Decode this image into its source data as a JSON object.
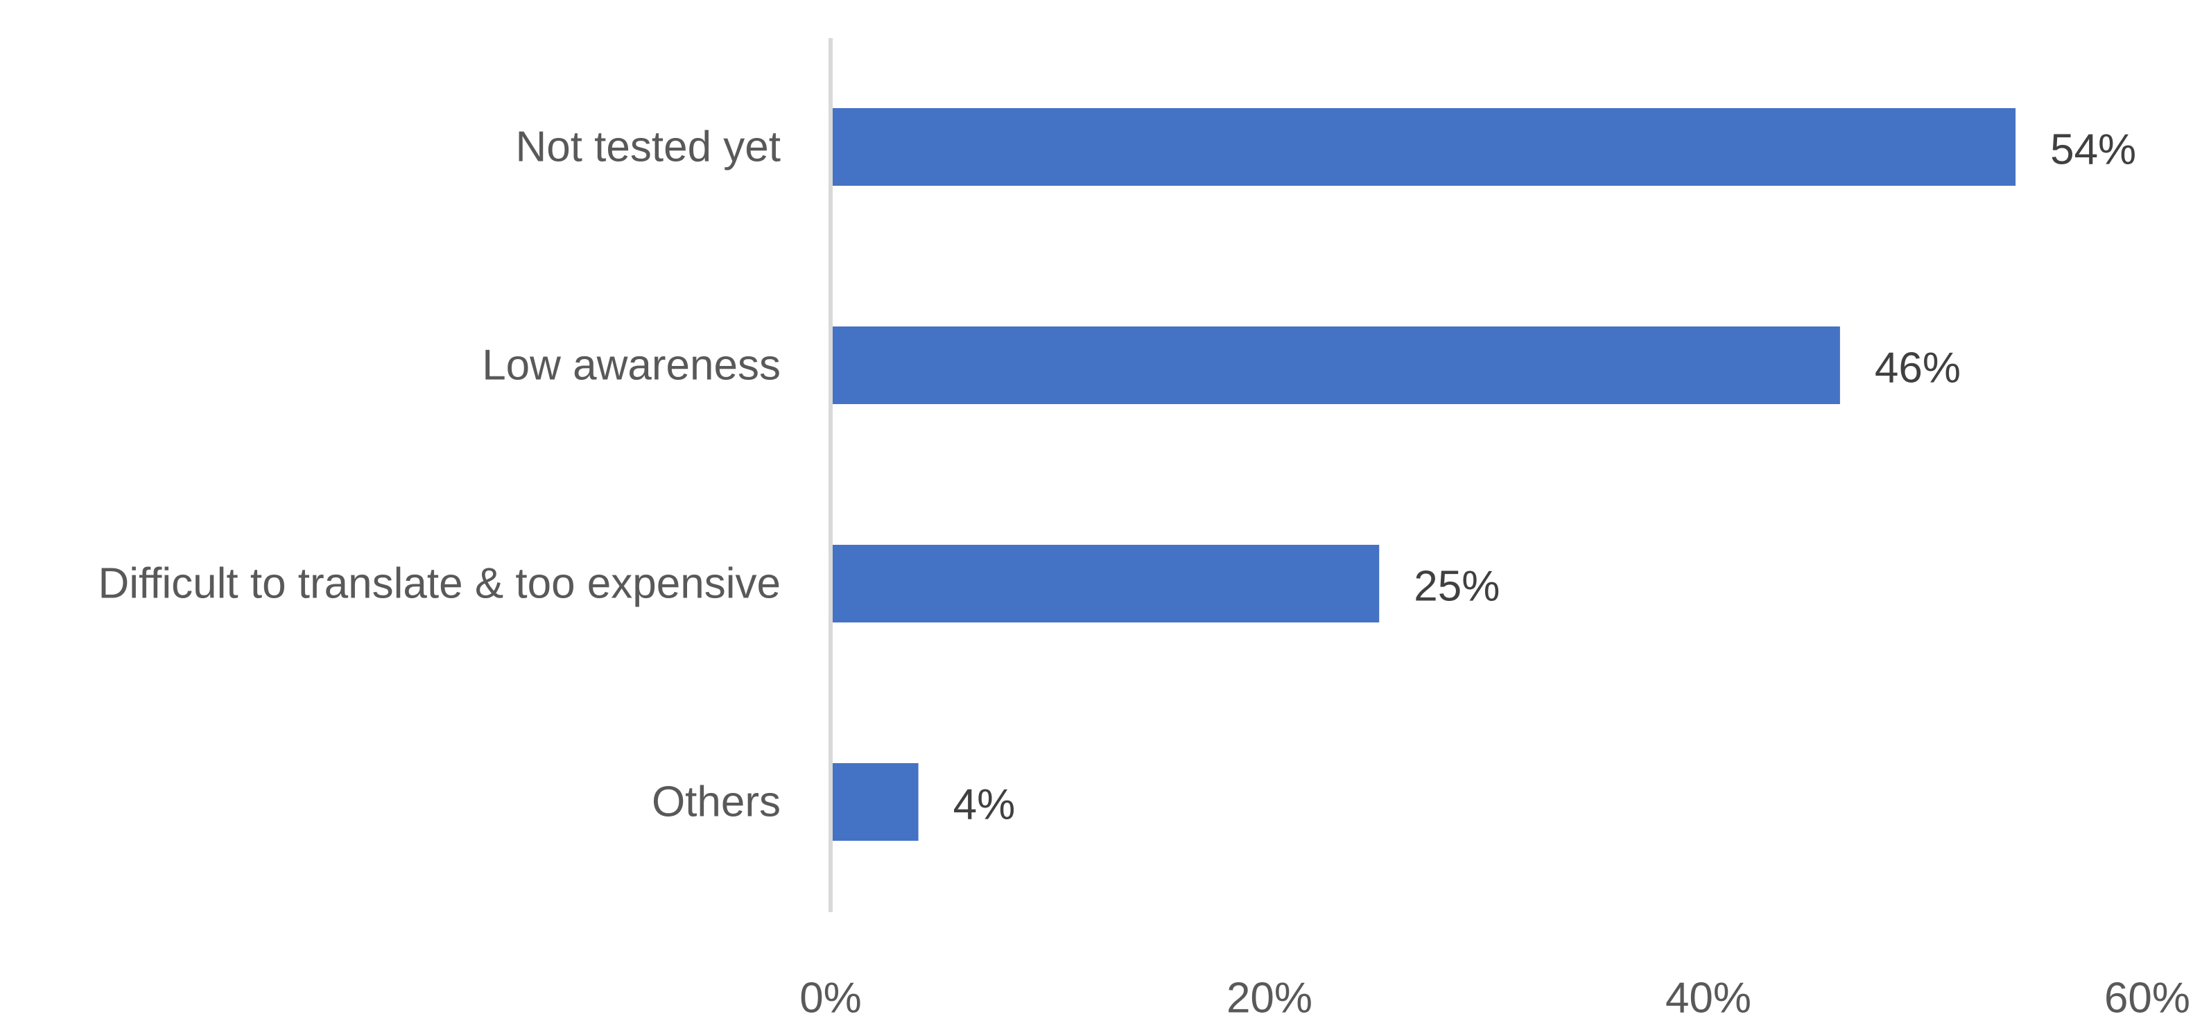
{
  "chart_data": {
    "type": "bar",
    "orientation": "horizontal",
    "categories": [
      "Not tested yet",
      "Low awareness",
      "Difficult to translate & too expensive",
      "Others"
    ],
    "values": [
      54,
      46,
      25,
      4
    ],
    "value_labels": [
      "54%",
      "46%",
      "25%",
      "4%"
    ],
    "title": "",
    "xlabel": "",
    "ylabel": "",
    "xlim": [
      0,
      60
    ],
    "x_ticks": [
      0,
      20,
      40,
      60
    ],
    "x_tick_labels": [
      "0%",
      "20%",
      "40%",
      "60%"
    ],
    "grid": false,
    "legend": "none",
    "bar_color": "#4472C4",
    "axis_color": "#D9D9D9",
    "label_color": "#595959",
    "value_label_color": "#404040"
  }
}
